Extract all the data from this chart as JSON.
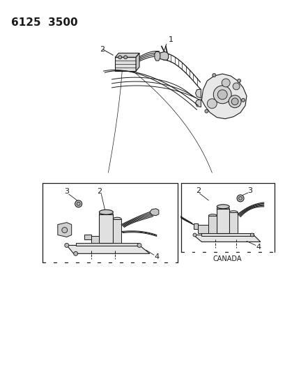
{
  "title": "6125  3500",
  "background_color": "#ffffff",
  "fig_width": 4.1,
  "fig_height": 5.33,
  "dpi": 100,
  "label_1": "1",
  "label_2": "2",
  "label_3": "3",
  "label_4": "4",
  "canada_label": "CANADA",
  "line_color": "#1a1a1a",
  "title_fontsize": 11,
  "canada_fontsize": 7
}
